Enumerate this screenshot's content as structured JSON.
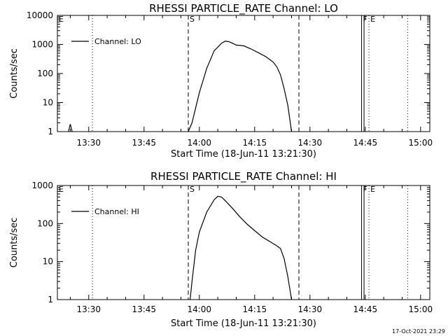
{
  "chart_data": [
    {
      "type": "line",
      "title": "RHESSI PARTICLE_RATE Channel: LO",
      "xlabel": "Start Time (18-Jun-11 13:21:30)",
      "ylabel": "Counts/sec",
      "y_scale": "log",
      "ylim": [
        1,
        10000
      ],
      "xlim": [
        "13:21:30",
        "15:02:30"
      ],
      "xtick_labels": [
        "13:30",
        "13:45",
        "14:00",
        "14:15",
        "14:30",
        "14:45",
        "15:00"
      ],
      "ytick_labels": [
        "1",
        "10",
        "100",
        "1000",
        "10000"
      ],
      "legend": {
        "placement": "top-left",
        "entries": [
          "Channel: LO"
        ]
      },
      "markers": [
        {
          "label": "E",
          "time": "13:21:30",
          "style": "solid"
        },
        {
          "label": "",
          "time": "13:31:00",
          "style": "dotted"
        },
        {
          "label": "S",
          "time": "13:57:00",
          "style": "dashed"
        },
        {
          "label": "",
          "time": "14:27:00",
          "style": "dashed"
        },
        {
          "label": "F",
          "time": "14:44:00",
          "style": "solid"
        },
        {
          "label": "",
          "time": "14:44:40",
          "style": "solid"
        },
        {
          "label": "E",
          "time": "14:46:00",
          "style": "dotted"
        },
        {
          "label": "",
          "time": "14:56:30",
          "style": "dotted"
        }
      ],
      "series": [
        {
          "name": "Channel: LO",
          "segments": [
            [
              [
                "13:24:30",
                1
              ],
              [
                "13:25:00",
                1.8
              ],
              [
                "13:25:30",
                1
              ]
            ],
            [
              [
                "13:57:00",
                1
              ],
              [
                "13:58:00",
                2
              ],
              [
                "14:00:00",
                22
              ],
              [
                "14:02:00",
                150
              ],
              [
                "14:04:00",
                600
              ],
              [
                "14:06:00",
                1100
              ],
              [
                "14:07:00",
                1300
              ],
              [
                "14:08:00",
                1250
              ],
              [
                "14:09:00",
                1100
              ],
              [
                "14:10:00",
                950
              ],
              [
                "14:12:00",
                900
              ],
              [
                "14:14:00",
                700
              ],
              [
                "14:16:00",
                520
              ],
              [
                "14:18:00",
                380
              ],
              [
                "14:20:00",
                250
              ],
              [
                "14:21:00",
                170
              ],
              [
                "14:22:00",
                90
              ],
              [
                "14:23:00",
                30
              ],
              [
                "14:24:00",
                8
              ],
              [
                "14:25:00",
                1
              ]
            ]
          ]
        }
      ]
    },
    {
      "type": "line",
      "title": "RHESSI PARTICLE_RATE Channel: HI",
      "xlabel": "Start Time (18-Jun-11 13:21:30)",
      "ylabel": "Counts/sec",
      "y_scale": "log",
      "ylim": [
        1,
        1000
      ],
      "xlim": [
        "13:21:30",
        "15:02:30"
      ],
      "xtick_labels": [
        "13:30",
        "13:45",
        "14:00",
        "14:15",
        "14:30",
        "14:45",
        "15:00"
      ],
      "ytick_labels": [
        "1",
        "10",
        "100",
        "1000"
      ],
      "legend": {
        "placement": "top-left",
        "entries": [
          "Channel: HI"
        ]
      },
      "markers": [
        {
          "label": "E",
          "time": "13:21:30",
          "style": "solid"
        },
        {
          "label": "",
          "time": "13:31:00",
          "style": "dotted"
        },
        {
          "label": "S",
          "time": "13:57:00",
          "style": "dashed"
        },
        {
          "label": "",
          "time": "14:27:00",
          "style": "dashed"
        },
        {
          "label": "F",
          "time": "14:44:00",
          "style": "solid"
        },
        {
          "label": "",
          "time": "14:44:40",
          "style": "solid"
        },
        {
          "label": "E",
          "time": "14:46:00",
          "style": "dotted"
        },
        {
          "label": "",
          "time": "14:56:30",
          "style": "dotted"
        }
      ],
      "series": [
        {
          "name": "Channel: HI",
          "segments": [
            [
              [
                "13:57:30",
                1
              ],
              [
                "13:58:00",
                3
              ],
              [
                "13:59:00",
                20
              ],
              [
                "14:00:00",
                60
              ],
              [
                "14:02:00",
                200
              ],
              [
                "14:04:00",
                420
              ],
              [
                "14:05:00",
                520
              ],
              [
                "14:06:00",
                500
              ],
              [
                "14:07:00",
                400
              ],
              [
                "14:09:00",
                250
              ],
              [
                "14:11:00",
                150
              ],
              [
                "14:13:00",
                95
              ],
              [
                "14:15:00",
                65
              ],
              [
                "14:17:00",
                45
              ],
              [
                "14:19:00",
                34
              ],
              [
                "14:21:00",
                26
              ],
              [
                "14:22:00",
                22
              ],
              [
                "14:23:00",
                12
              ],
              [
                "14:24:00",
                4
              ],
              [
                "14:25:00",
                1
              ]
            ]
          ]
        }
      ]
    }
  ],
  "footer": {
    "timestamp": "17-Oct-2021 23:29"
  }
}
